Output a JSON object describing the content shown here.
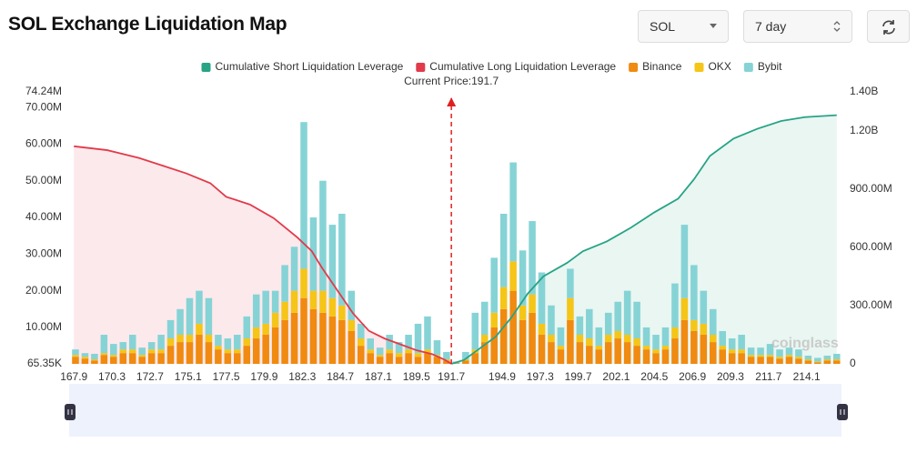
{
  "header": {
    "title": "SOL Exchange Liquidation Map",
    "symbol": "SOL",
    "range": "7 day"
  },
  "chart_data": {
    "type": "bar",
    "stacked": true,
    "annotation": "Current Price:191.7",
    "current_price": 191.7,
    "watermark": "coinglass",
    "x": [
      168.0,
      168.6,
      169.2,
      169.8,
      170.4,
      171.0,
      171.6,
      172.2,
      172.8,
      173.4,
      174.0,
      174.6,
      175.2,
      175.8,
      176.4,
      177.0,
      177.6,
      178.2,
      178.8,
      179.4,
      180.0,
      180.6,
      181.2,
      181.8,
      182.4,
      183.0,
      183.6,
      184.2,
      184.8,
      185.4,
      186.0,
      186.6,
      187.2,
      187.8,
      188.4,
      189.0,
      189.6,
      190.2,
      190.8,
      191.4,
      192.0,
      192.6,
      193.2,
      193.8,
      194.4,
      195.0,
      195.6,
      196.2,
      196.8,
      197.4,
      198.0,
      198.6,
      199.2,
      199.8,
      200.4,
      201.0,
      201.6,
      202.2,
      202.8,
      203.4,
      204.0,
      204.6,
      205.2,
      205.8,
      206.4,
      207.0,
      207.6,
      208.2,
      208.8,
      209.4,
      210.0,
      210.6,
      211.2,
      211.8,
      212.4,
      213.0,
      213.6,
      214.2,
      214.8,
      215.4,
      216.0
    ],
    "series": [
      {
        "name": "Cumulative Short Liquidation Leverage",
        "type": "line",
        "axis": "y2",
        "color": "#27a386",
        "fill": "#e3f4ee",
        "x": [
          191.7,
          192.5,
          193.5,
          194.5,
          195.5,
          196.5,
          197.5,
          199,
          200,
          201.5,
          203,
          204.5,
          206,
          207,
          208,
          209.5,
          211,
          212.5,
          214,
          216
        ],
        "values": [
          0,
          0.02,
          0.08,
          0.14,
          0.24,
          0.36,
          0.45,
          0.52,
          0.58,
          0.63,
          0.7,
          0.78,
          0.85,
          0.95,
          1.07,
          1.16,
          1.21,
          1.25,
          1.27,
          1.28
        ]
      },
      {
        "name": "Cumulative Long Liquidation Leverage",
        "type": "line",
        "axis": "y2",
        "color": "#e23a4a",
        "fill": "#fbe4e7",
        "x": [
          167.9,
          170,
          172,
          173.5,
          175,
          176.5,
          177.5,
          179,
          180.5,
          182,
          182.9,
          183.5,
          184.5,
          185.5,
          186.5,
          187.5,
          188.5,
          189.5,
          190.5,
          191.3,
          191.7
        ],
        "values": [
          1.12,
          1.1,
          1.06,
          1.02,
          0.98,
          0.93,
          0.86,
          0.82,
          0.75,
          0.65,
          0.58,
          0.5,
          0.38,
          0.26,
          0.17,
          0.13,
          0.1,
          0.07,
          0.05,
          0.02,
          0
        ]
      },
      {
        "name": "Binance",
        "type": "bar",
        "color": "#f08a10",
        "values": [
          2,
          1.5,
          1,
          2.5,
          2,
          3,
          3,
          2,
          3,
          3,
          5,
          6,
          6,
          8,
          6,
          4,
          3,
          3,
          5,
          7,
          8,
          10,
          12,
          14,
          18,
          15,
          14,
          13,
          12,
          9,
          5,
          3,
          2,
          3,
          2,
          3,
          2,
          3,
          2,
          1,
          0.2,
          1,
          3,
          6,
          10,
          15,
          20,
          12,
          14,
          8,
          6,
          4,
          12,
          6,
          5,
          4,
          6,
          7,
          6,
          5,
          4,
          3,
          4,
          7,
          12,
          9,
          8,
          6,
          4,
          3,
          3,
          2,
          2,
          2,
          1.5,
          2,
          1.5,
          1,
          0.5,
          1,
          1
        ]
      },
      {
        "name": "OKX",
        "type": "bar",
        "color": "#f5c518",
        "values": [
          0.5,
          0.5,
          0.3,
          0.5,
          0.5,
          1,
          1,
          0.5,
          1,
          1,
          2,
          2,
          2,
          3,
          2,
          1,
          1,
          1,
          2,
          3,
          3,
          4,
          5,
          6,
          8,
          5,
          6,
          5,
          4,
          3,
          2,
          1,
          0.5,
          1,
          1,
          1,
          1,
          1,
          0.5,
          0.3,
          0,
          0.3,
          1,
          2,
          4,
          6,
          8,
          4,
          5,
          3,
          2,
          1,
          6,
          2,
          2,
          1,
          2,
          2,
          2,
          2,
          1,
          1,
          1,
          3,
          6,
          3,
          3,
          2,
          1,
          1,
          1,
          0.5,
          0.5,
          0.5,
          0.5,
          0.5,
          0.5,
          0.3,
          0.2,
          0.3,
          0.3
        ]
      },
      {
        "name": "Bybit",
        "type": "bar",
        "color": "#86d3d6",
        "values": [
          1.5,
          1,
          1.5,
          5,
          3,
          2,
          4,
          2,
          2,
          4,
          5,
          7,
          10,
          9,
          10,
          3,
          3,
          4,
          6,
          9,
          9,
          6,
          10,
          12,
          40,
          20,
          30,
          20,
          25,
          8,
          4,
          3,
          2,
          4,
          3,
          4,
          8,
          9,
          4,
          2,
          0.5,
          2,
          10,
          9,
          15,
          20,
          27,
          15,
          20,
          14,
          8,
          5,
          8,
          5,
          8,
          5,
          6,
          8,
          12,
          10,
          5,
          4,
          5,
          12,
          20,
          15,
          9,
          7,
          4,
          3,
          4,
          2,
          2,
          3,
          2,
          2,
          2,
          1,
          1,
          1,
          1.5
        ]
      }
    ],
    "xlim": [
      167.6,
      216.3
    ],
    "xticks": [
      167.9,
      170.3,
      172.7,
      175.1,
      177.5,
      179.9,
      182.3,
      184.7,
      187.1,
      189.5,
      191.7,
      194.9,
      197.3,
      199.7,
      202.1,
      204.5,
      206.9,
      209.3,
      211.7,
      214.1
    ],
    "ylim": [
      0.06535,
      74.24
    ],
    "yticks": [
      {
        "value": 0.06535,
        "label": "65.35K"
      },
      {
        "value": 10,
        "label": "10.00M"
      },
      {
        "value": 20,
        "label": "20.00M"
      },
      {
        "value": 30,
        "label": "30.00M"
      },
      {
        "value": 40,
        "label": "40.00M"
      },
      {
        "value": 50,
        "label": "50.00M"
      },
      {
        "value": 60,
        "label": "60.00M"
      },
      {
        "value": 70,
        "label": "70.00M"
      },
      {
        "value": 74.24,
        "label": "74.24M"
      }
    ],
    "y2lim": [
      0,
      1.4
    ],
    "y2ticks": [
      0,
      {
        "value": 0.3,
        "label": "300.00M"
      },
      {
        "value": 0.6,
        "label": "600.00M"
      },
      {
        "value": 0.9,
        "label": "900.00M"
      },
      {
        "value": 1.2,
        "label": "1.20B"
      },
      {
        "value": 1.4,
        "label": "1.40B"
      }
    ]
  }
}
